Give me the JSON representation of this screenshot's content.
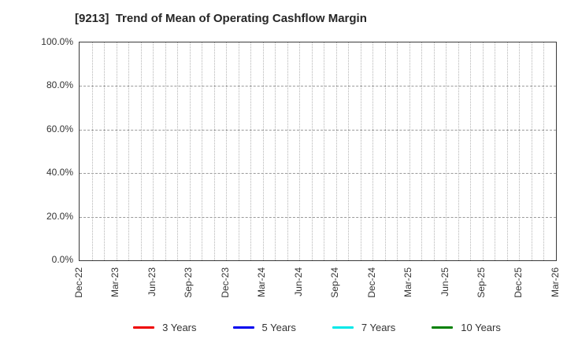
{
  "chart": {
    "title": "[9213]  Trend of Mean of Operating Cashflow Margin"
  },
  "chart_data": {
    "type": "line",
    "title": "[9213]  Trend of Mean of Operating Cashflow Margin",
    "categories": [
      "Dec-22",
      "Mar-23",
      "Jun-23",
      "Sep-23",
      "Dec-23",
      "Mar-24",
      "Jun-24",
      "Sep-24",
      "Dec-24",
      "Mar-25",
      "Jun-25",
      "Sep-25",
      "Dec-25",
      "Mar-26"
    ],
    "minor_gridlines_per_category_interval": 3,
    "ylabel": "",
    "xlabel": "",
    "ylim": [
      0,
      100
    ],
    "ytick_labels": [
      "100.0%",
      "80.0%",
      "60.0%",
      "40.0%",
      "20.0%",
      "0.0%"
    ],
    "grid": true,
    "legend_position": "bottom",
    "series": [
      {
        "name": "3 Years",
        "color": "#ee0000",
        "values": []
      },
      {
        "name": "5 Years",
        "color": "#0000ee",
        "values": []
      },
      {
        "name": "7 Years",
        "color": "#00e8e8",
        "values": []
      },
      {
        "name": "10 Years",
        "color": "#008000",
        "values": []
      }
    ],
    "colors": {
      "title_text": "#262626",
      "tick_text": "#333333",
      "plot_border": "#3a3a3a",
      "vertical_grid": "#b5b5b5",
      "horizontal_grid": "#9a9a9a",
      "background": "#ffffff"
    }
  }
}
